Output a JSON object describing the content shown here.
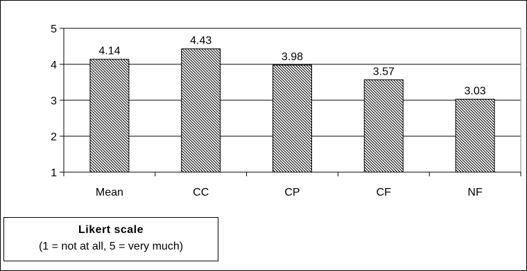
{
  "chart_data": {
    "type": "bar",
    "categories": [
      "Mean",
      "CC",
      "CP",
      "CF",
      "NF"
    ],
    "values": [
      4.14,
      4.43,
      3.98,
      3.57,
      3.03
    ],
    "value_labels": [
      "4.14",
      "4.43",
      "3.98",
      "3.57",
      "3.03"
    ],
    "ylim": [
      1,
      5
    ],
    "yticks": [
      "1",
      "2",
      "3",
      "4",
      "5"
    ],
    "grid": true,
    "bar_pattern": "diagonal-hatch",
    "colors": {
      "bar_fill": "#ffffff",
      "hatch": "#000000",
      "grid": "#000000"
    }
  },
  "legend": {
    "title": "Likert scale",
    "note": "(1 = not at all, 5 = very much)",
    "placement": "bottom-left"
  }
}
